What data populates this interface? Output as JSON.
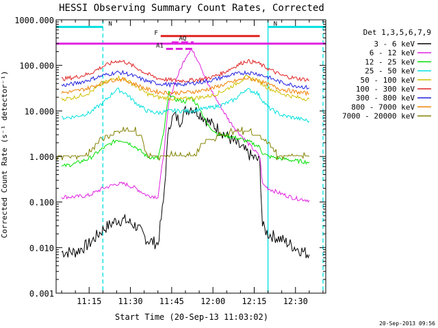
{
  "chart_data": {
    "type": "line",
    "title": "HESSI Observing Summary Count Rates, Corrected",
    "xlabel": "Start Time (20-Sep-13 11:03:02)",
    "ylabel": "Corrected Count Rate (s⁻¹ detector⁻¹)",
    "xlim": [
      "11:03",
      "12:41"
    ],
    "ylim": [
      0.001,
      1000
    ],
    "yscale": "log",
    "xticks": [
      "11:15",
      "11:30",
      "11:45",
      "12:00",
      "12:15",
      "12:30"
    ],
    "yticks": [
      "0.001",
      "0.010",
      "0.100",
      "1.000",
      "10.000",
      "100.000",
      "1000.000"
    ],
    "legend_title": "Det 1,3,5,6,7,9",
    "legend_position": "right",
    "timestamp": "20-Sep-2013 09:56",
    "series": [
      {
        "name": "3 - 6 keV",
        "color": "#000000",
        "x": [
          "11:05",
          "11:10",
          "11:15",
          "11:20",
          "11:25",
          "11:28",
          "11:32",
          "11:36",
          "11:40",
          "11:42",
          "11:44",
          "11:46",
          "11:48",
          "11:50",
          "11:52",
          "11:55",
          "11:58",
          "12:02",
          "12:06",
          "12:10",
          "12:14",
          "12:17",
          "12:18",
          "12:20",
          "12:25",
          "12:30",
          "12:35"
        ],
        "y": [
          0.008,
          0.008,
          0.012,
          0.025,
          0.04,
          0.04,
          0.03,
          0.015,
          0.012,
          0.1,
          5,
          8,
          6,
          10,
          12,
          9,
          6,
          4,
          2.5,
          1.6,
          1,
          0.8,
          0.03,
          0.02,
          0.015,
          0.01,
          0.007
        ]
      },
      {
        "name": "6 - 12 keV",
        "color": "#e020e0",
        "x": [
          "11:05",
          "11:10",
          "11:15",
          "11:20",
          "11:25",
          "11:28",
          "11:32",
          "11:36",
          "11:40",
          "11:42",
          "11:44",
          "11:46",
          "11:50",
          "11:52",
          "11:55",
          "11:58",
          "12:02",
          "12:06",
          "12:10",
          "12:14",
          "12:17",
          "12:18",
          "12:20",
          "12:25",
          "12:30",
          "12:35"
        ],
        "y": [
          0.13,
          0.13,
          0.14,
          0.2,
          0.25,
          0.25,
          0.2,
          0.14,
          0.13,
          1,
          15,
          40,
          150,
          230,
          120,
          40,
          15,
          6,
          3,
          1.6,
          1,
          0.25,
          0.2,
          0.15,
          0.12,
          0.11
        ]
      },
      {
        "name": "12 - 25 keV",
        "color": "#00e000",
        "x": [
          "11:05",
          "11:10",
          "11:15",
          "11:20",
          "11:25",
          "11:28",
          "11:32",
          "11:36",
          "11:40",
          "11:42",
          "11:44",
          "11:46",
          "11:50",
          "11:52",
          "11:55",
          "11:58",
          "12:02",
          "12:06",
          "12:10",
          "12:14",
          "12:17",
          "12:18",
          "12:20",
          "12:25",
          "12:30",
          "12:35"
        ],
        "y": [
          0.6,
          0.7,
          0.9,
          1.5,
          2.3,
          2.2,
          1.6,
          1,
          0.9,
          3,
          25,
          18,
          16,
          20,
          12,
          5,
          3,
          2.8,
          2.4,
          2,
          1.6,
          1.2,
          1,
          0.9,
          0.8,
          0.75
        ]
      },
      {
        "name": "25 - 50 keV",
        "color": "#00e0e0",
        "x": [
          "11:05",
          "11:10",
          "11:15",
          "11:20",
          "11:25",
          "11:28",
          "11:32",
          "11:36",
          "11:40",
          "11:44",
          "11:48",
          "11:52",
          "11:56",
          "12:00",
          "12:04",
          "12:08",
          "12:12",
          "12:16",
          "12:20",
          "12:25",
          "12:30",
          "12:35"
        ],
        "y": [
          7,
          7.5,
          9,
          15,
          30,
          25,
          15,
          10,
          9,
          10,
          10,
          10,
          11,
          12,
          14,
          18,
          30,
          25,
          12,
          8,
          7,
          6
        ]
      },
      {
        "name": "50 - 100 keV",
        "color": "#d0c000",
        "x": [
          "11:05",
          "11:10",
          "11:15",
          "11:20",
          "11:25",
          "11:28",
          "11:32",
          "11:36",
          "11:40",
          "11:44",
          "11:48",
          "11:52",
          "11:56",
          "12:00",
          "12:04",
          "12:08",
          "12:12",
          "12:16",
          "12:20",
          "12:25",
          "12:30",
          "12:35"
        ],
        "y": [
          18,
          20,
          25,
          40,
          55,
          50,
          35,
          24,
          20,
          19,
          18,
          19,
          20,
          22,
          28,
          38,
          55,
          48,
          32,
          24,
          20,
          18
        ]
      },
      {
        "name": "100 - 300 keV",
        "color": "#e02020",
        "x": [
          "11:05",
          "11:10",
          "11:15",
          "11:20",
          "11:25",
          "11:28",
          "11:32",
          "11:36",
          "11:40",
          "11:44",
          "11:48",
          "11:52",
          "11:56",
          "12:00",
          "12:04",
          "12:08",
          "12:12",
          "12:16",
          "12:20",
          "12:25",
          "12:30",
          "12:35"
        ],
        "y": [
          50,
          55,
          65,
          95,
          125,
          120,
          90,
          65,
          52,
          48,
          46,
          47,
          50,
          56,
          70,
          95,
          125,
          115,
          85,
          60,
          52,
          48
        ]
      },
      {
        "name": "300 - 800 keV",
        "color": "#2020e0",
        "x": [
          "11:05",
          "11:10",
          "11:15",
          "11:20",
          "11:25",
          "11:28",
          "11:32",
          "11:36",
          "11:40",
          "11:44",
          "11:48",
          "11:52",
          "11:56",
          "12:00",
          "12:04",
          "12:08",
          "12:12",
          "12:16",
          "12:20",
          "12:25",
          "12:30",
          "12:35"
        ],
        "y": [
          36,
          40,
          48,
          60,
          70,
          68,
          56,
          45,
          40,
          38,
          38,
          40,
          43,
          48,
          56,
          64,
          70,
          66,
          55,
          42,
          36,
          32
        ]
      },
      {
        "name": "800 - 7000 keV",
        "color": "#f08000",
        "x": [
          "11:05",
          "11:10",
          "11:15",
          "11:20",
          "11:25",
          "11:28",
          "11:32",
          "11:36",
          "11:40",
          "11:44",
          "11:48",
          "11:52",
          "11:56",
          "12:00",
          "12:04",
          "12:08",
          "12:12",
          "12:16",
          "12:20",
          "12:25",
          "12:30",
          "12:35"
        ],
        "y": [
          25,
          27,
          32,
          42,
          50,
          48,
          38,
          30,
          26,
          25,
          25,
          26,
          28,
          32,
          38,
          45,
          52,
          48,
          38,
          30,
          26,
          24
        ]
      },
      {
        "name": "7000 - 20000 keV",
        "color": "#808000",
        "x": [
          "11:03",
          "11:12",
          "11:14",
          "11:18",
          "11:22",
          "11:26",
          "11:30",
          "11:34",
          "11:36",
          "11:38",
          "11:42",
          "11:46",
          "11:50",
          "11:54",
          "11:56",
          "12:00",
          "12:04",
          "12:08",
          "12:12",
          "12:16",
          "12:18",
          "12:20",
          "12:24",
          "12:28",
          "12:32",
          "12:35"
        ],
        "y": [
          1,
          1,
          1,
          2,
          3,
          3.5,
          3.5,
          3,
          1,
          1,
          1,
          1,
          1,
          1,
          2,
          2.5,
          3,
          3.5,
          3.5,
          3,
          2.5,
          2,
          1,
          1,
          1,
          1
        ]
      }
    ],
    "flags": [
      {
        "label": "N",
        "color": "#00e0e0",
        "start": "11:03",
        "end": "11:20",
        "value": 700
      },
      {
        "label": "N",
        "color": "#00e0e0",
        "start": "12:20",
        "end": "12:41",
        "value": 700
      },
      {
        "label": "F",
        "color": "#e02020",
        "start": "11:41",
        "end": "12:17",
        "value": 440
      },
      {
        "label": "AQ",
        "color": "#e020e0",
        "start": "11:45",
        "end": "11:53",
        "value": 320
      },
      {
        "label": "",
        "color": "#e020e0",
        "start": "11:03",
        "end": "12:41",
        "value": 300
      },
      {
        "label": "A1",
        "color": "#e020e0",
        "start": "11:43",
        "end": "11:53",
        "value": 230
      }
    ],
    "vlines": [
      {
        "time": "11:20",
        "color": "#00e0e0",
        "style": "dashed"
      },
      {
        "time": "12:20",
        "color": "#00e0e0",
        "style": "solid"
      },
      {
        "time": "12:40",
        "color": "#00e0e0",
        "style": "dashed"
      }
    ]
  }
}
